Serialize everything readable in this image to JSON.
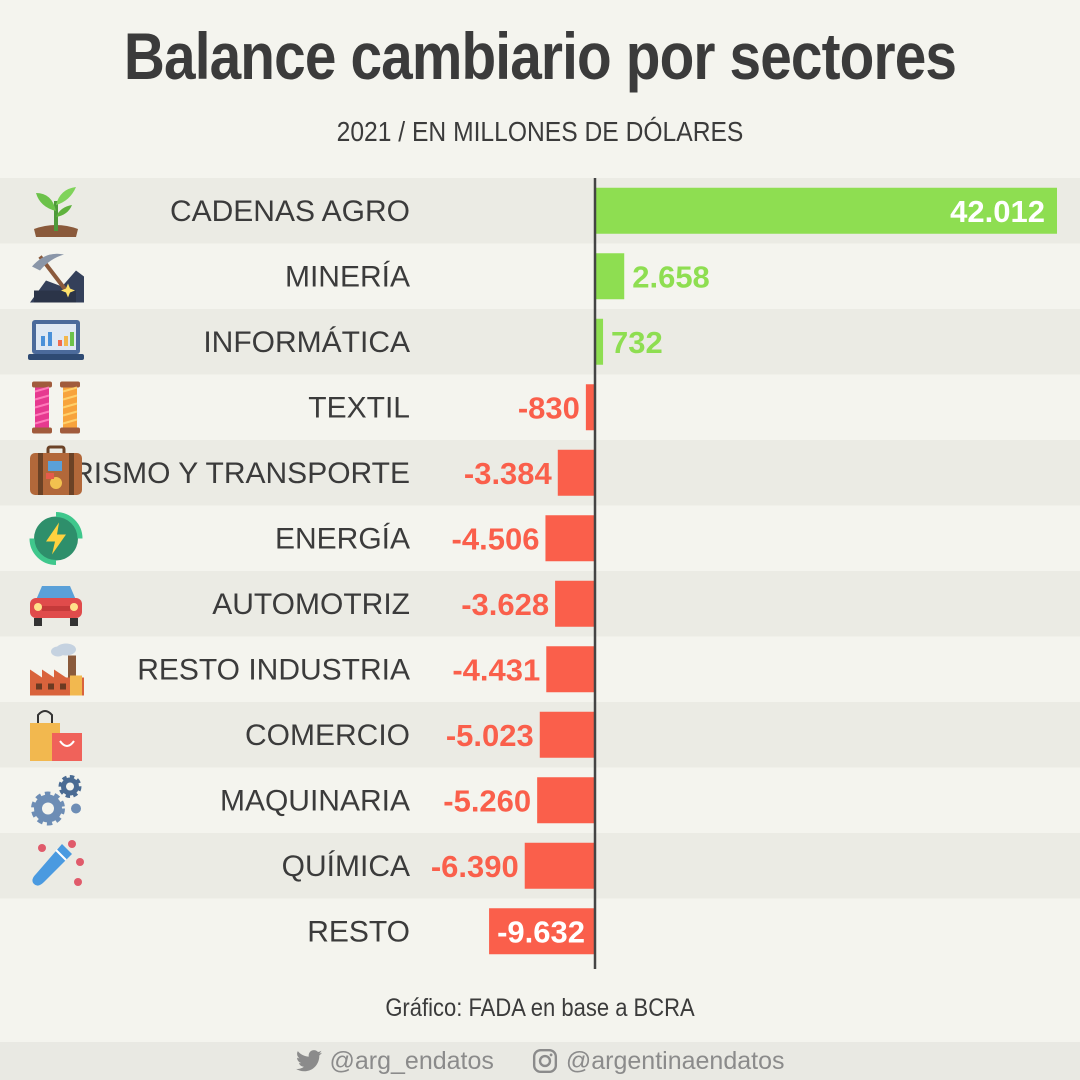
{
  "title": "Balance cambiario por sectores",
  "subtitle": "2021 / EN MILLONES DE DÓLARES",
  "source": "Gráfico: FADA en base a BCRA",
  "social": {
    "twitter_icon": "twitter-icon",
    "twitter_handle": "@arg_endatos",
    "instagram_icon": "instagram-icon",
    "instagram_handle": "@argentinaendatos"
  },
  "colors": {
    "positive": "#8ede51",
    "negative": "#fa5f4b",
    "axis": "#444444",
    "label": "#3b3b3b",
    "row_alt": "#ebebe4"
  },
  "chart_data": {
    "type": "bar",
    "orientation": "horizontal",
    "categories": [
      "CADENAS AGRO",
      "MINERÍA",
      "INFORMÁTICA",
      "TEXTIL",
      "TURISMO Y TRANSPORTE",
      "ENERGÍA",
      "AUTOMOTRIZ",
      "RESTO INDUSTRIA",
      "COMERCIO",
      "MAQUINARIA",
      "QUÍMICA",
      "RESTO"
    ],
    "values": [
      42012,
      2658,
      732,
      -830,
      -3384,
      -4506,
      -3628,
      -4431,
      -5023,
      -5260,
      -6390,
      -9632
    ],
    "value_labels": [
      "42.012",
      "2.658",
      "732",
      "-830",
      "-3.384",
      "-4.506",
      "-3.628",
      "-4.431",
      "-5.023",
      "-5.260",
      "-6.390",
      "-9.632"
    ],
    "icons": [
      "plant-icon",
      "mining-icon",
      "laptop-chart-icon",
      "thread-spools-icon",
      "suitcase-icon",
      "energy-icon",
      "car-icon",
      "factory-icon",
      "shopping-bags-icon",
      "gears-icon",
      "test-tube-icon",
      ""
    ],
    "title": "Balance cambiario por sectores",
    "subtitle": "2021 / EN MILLONES DE DÓLARES",
    "xlabel": "",
    "ylabel": "",
    "xlim": [
      -9632,
      42012
    ],
    "grid": false,
    "legend": "none"
  }
}
